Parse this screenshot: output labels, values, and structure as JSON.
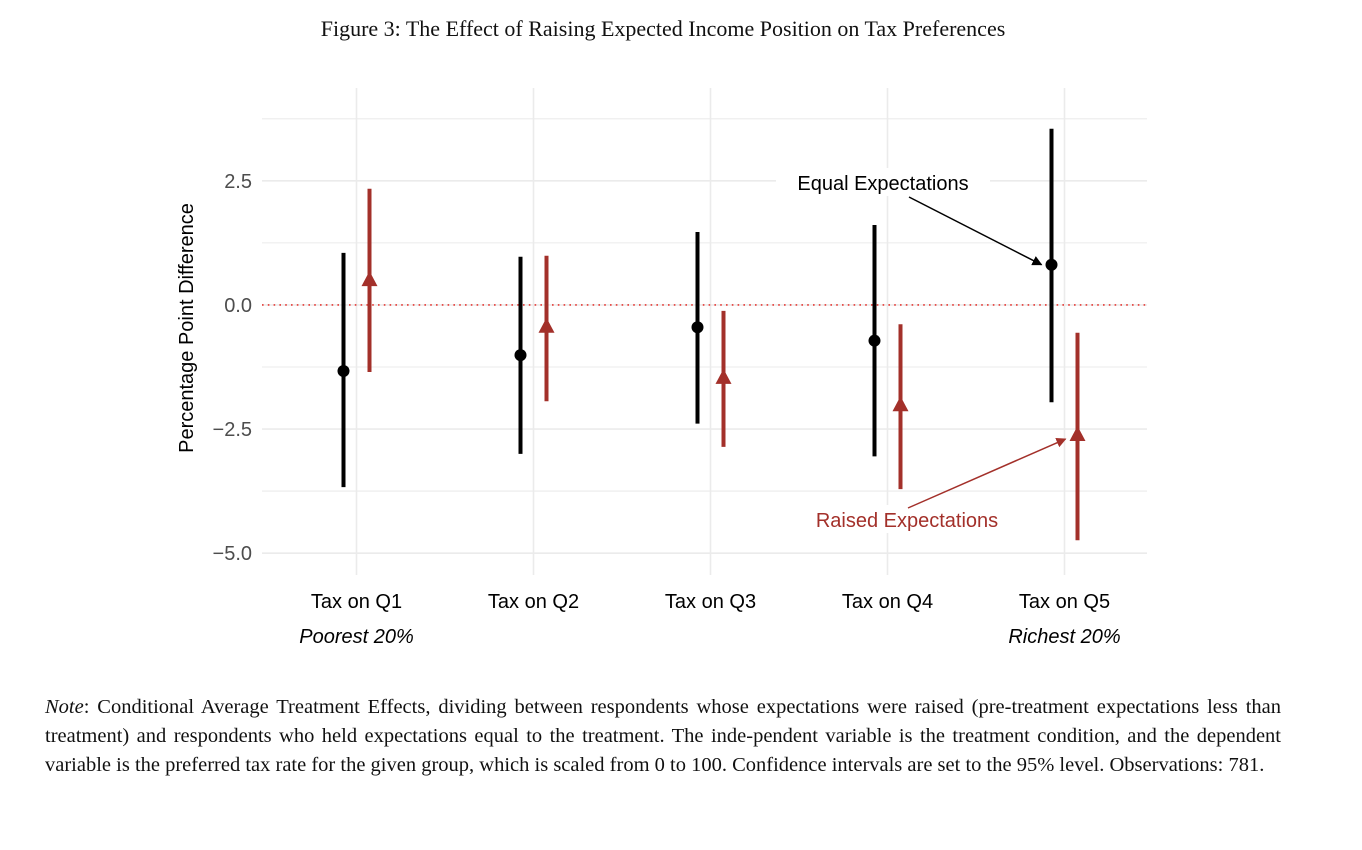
{
  "figure_title": "Figure 3: The Effect of Raising Expected Income Position on Tax Preferences",
  "note": {
    "label": "Note",
    "text": ":  Conditional Average Treatment Effects, dividing between respondents whose expectations were raised (pre-treatment expectations less than treatment) and respondents who held expectations equal to the treatment. The inde-pendent variable is the treatment condition, and the dependent variable is the preferred tax rate for the given group, which is scaled from 0 to 100. Confidence intervals are set to the 95% level. Observations: 781."
  },
  "colors": {
    "equal": "#000000",
    "raised": "#A3302A",
    "zero_line": "#E53935",
    "grid": "#EBEBEB",
    "tick_text": "#4D4D4D"
  },
  "chart_data": {
    "type": "scatter",
    "subtype": "point-range",
    "title": "Figure 3: The Effect of Raising Expected Income Position on Tax Preferences",
    "xlabel": "",
    "ylabel": "Percentage Point Difference",
    "categories": [
      "Tax on Q1",
      "Tax on Q2",
      "Tax on Q3",
      "Tax on Q4",
      "Tax on Q5"
    ],
    "category_sublabels": [
      "Poorest 20%",
      "",
      "",
      "",
      "Richest 20%"
    ],
    "ylim": [
      -5.44,
      4.37
    ],
    "yticks": [
      -5.0,
      -2.5,
      0.0,
      2.5
    ],
    "ytick_labels": [
      "−5.0",
      "−2.5",
      "0.0",
      "2.5"
    ],
    "grid": true,
    "reference_line": 0,
    "series": [
      {
        "name": "Equal Expectations",
        "marker": "circle",
        "estimate": [
          -1.33,
          -1.01,
          -0.45,
          -0.72,
          0.81
        ],
        "lower": [
          -3.67,
          -3.0,
          -2.39,
          -3.05,
          -1.96
        ],
        "upper": [
          1.05,
          0.97,
          1.47,
          1.61,
          3.55
        ]
      },
      {
        "name": "Raised Expectations",
        "marker": "triangle",
        "estimate": [
          0.5,
          -0.44,
          -1.47,
          -2.02,
          -2.62
        ],
        "lower": [
          -1.35,
          -1.94,
          -2.86,
          -3.71,
          -4.74
        ],
        "upper": [
          2.34,
          0.99,
          -0.12,
          -0.39,
          -0.56
        ]
      }
    ],
    "annotations": [
      {
        "text": "Equal Expectations",
        "series": 0,
        "points_to_category": "Tax on Q5"
      },
      {
        "text": "Raised Expectations",
        "series": 1,
        "points_to_category": "Tax on Q5"
      }
    ]
  }
}
